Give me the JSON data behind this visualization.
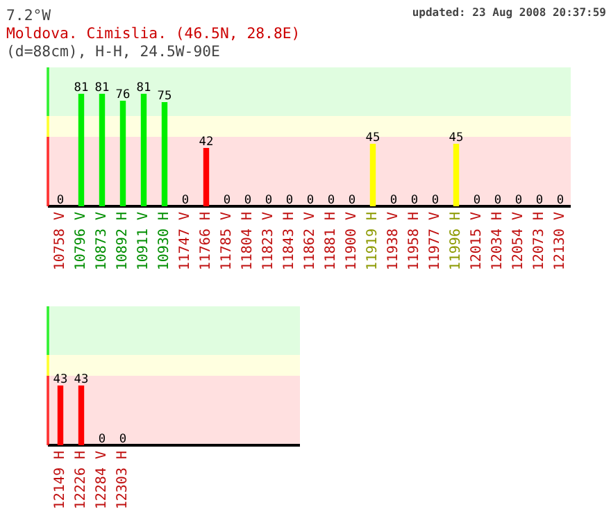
{
  "chart_data": [
    {
      "type": "bar",
      "title": "7.2°W",
      "subtitle": "Moldova. Cimislia.  (46.5N, 28.8E)",
      "annotations": [
        "updated: 23 Aug 2008 20:37:59",
        "(d=88cm), H-H, 24.5W-90E"
      ],
      "categories": [
        "10758 V",
        "10796 V",
        "10873 V",
        "10892 H",
        "10911 V",
        "10930 H",
        "11747 V",
        "11766 H",
        "11785 V",
        "11804 H",
        "11823 V",
        "11843 H",
        "11862 V",
        "11881 H",
        "11900 V",
        "11919 H",
        "11938 V",
        "11958 H",
        "11977 V",
        "11996 H",
        "12015 V",
        "12034 H",
        "12054 V",
        "12073 H",
        "12130 V"
      ],
      "values": [
        0,
        81,
        81,
        76,
        81,
        75,
        0,
        42,
        0,
        0,
        0,
        0,
        0,
        0,
        0,
        45,
        0,
        0,
        0,
        45,
        0,
        0,
        0,
        0,
        0
      ],
      "colors": [
        "#ff0000",
        "#00ee00",
        "#00ee00",
        "#00ee00",
        "#00ee00",
        "#00ee00",
        "#ff0000",
        "#ff0000",
        "#ff0000",
        "#ff0000",
        "#ff0000",
        "#ff0000",
        "#ff0000",
        "#ff0000",
        "#ff0000",
        "#ffff00",
        "#ff0000",
        "#ff0000",
        "#ff0000",
        "#ffff00",
        "#ff0000",
        "#ff0000",
        "#ff0000",
        "#ff0000",
        "#ff0000"
      ],
      "data_labels": true,
      "grid": false,
      "bands": [
        {
          "axis": "y",
          "from": 0,
          "to": 50,
          "color": "#ff0000"
        },
        {
          "axis": "y",
          "from": 50,
          "to": 65,
          "color": "#ffff00"
        },
        {
          "axis": "y",
          "from": 65,
          "to": 100,
          "color": "#00ee00"
        }
      ]
    },
    {
      "type": "bar",
      "categories": [
        "12149 H",
        "12226 H",
        "12284 V",
        "12303 H",
        null,
        null,
        null,
        null,
        null,
        null,
        null,
        null
      ],
      "values": [
        43,
        43,
        0,
        0,
        null,
        null,
        null,
        null,
        null,
        null,
        null,
        null
      ],
      "colors": [
        "#ff0000",
        "#ff0000",
        "#ff0000",
        "#ff0000",
        null,
        null,
        null,
        null,
        null,
        null,
        null,
        null
      ],
      "data_labels": true,
      "grid": false,
      "bands": [
        {
          "axis": "y",
          "from": 0,
          "to": 50,
          "color": "#ff0000"
        },
        {
          "axis": "y",
          "from": 50,
          "to": 65,
          "color": "#ffff00"
        },
        {
          "axis": "y",
          "from": 65,
          "to": 100,
          "color": "#00ee00"
        }
      ]
    }
  ]
}
